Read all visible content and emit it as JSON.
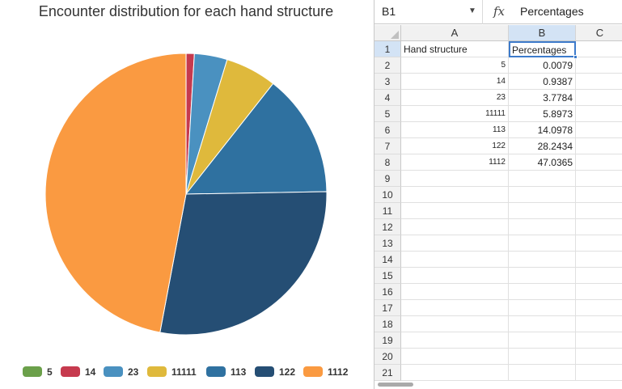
{
  "chart_data": {
    "type": "pie",
    "title": "Encounter distribution for each hand structure",
    "categories": [
      "5",
      "14",
      "23",
      "11111",
      "113",
      "122",
      "1112"
    ],
    "values": [
      0.0079,
      0.9387,
      3.7784,
      5.8973,
      14.0978,
      28.2434,
      47.0365
    ],
    "colors": [
      "#6ba04a",
      "#c63a4e",
      "#4a91c0",
      "#dfb93c",
      "#2f71a0",
      "#254e74",
      "#fa9a41"
    ],
    "legend_position": "bottom"
  },
  "sheet": {
    "name_box": "B1",
    "formula_icon": "fx-icon",
    "formula_value": "Percentages",
    "columns": [
      "A",
      "B",
      "C"
    ],
    "rows": [
      "1",
      "2",
      "3",
      "4",
      "5",
      "6",
      "7",
      "8",
      "9",
      "10",
      "11",
      "12",
      "13",
      "14",
      "15",
      "16",
      "17",
      "18",
      "19",
      "20",
      "21"
    ],
    "data": [
      {
        "a": "Hand structure",
        "b": "Percentages"
      },
      {
        "a": "5",
        "b": "0.0079"
      },
      {
        "a": "14",
        "b": "0.9387"
      },
      {
        "a": "23",
        "b": "3.7784"
      },
      {
        "a": "11111",
        "b": "5.8973"
      },
      {
        "a": "113",
        "b": "14.0978"
      },
      {
        "a": "122",
        "b": "28.2434"
      },
      {
        "a": "1112",
        "b": "47.0365"
      }
    ]
  }
}
